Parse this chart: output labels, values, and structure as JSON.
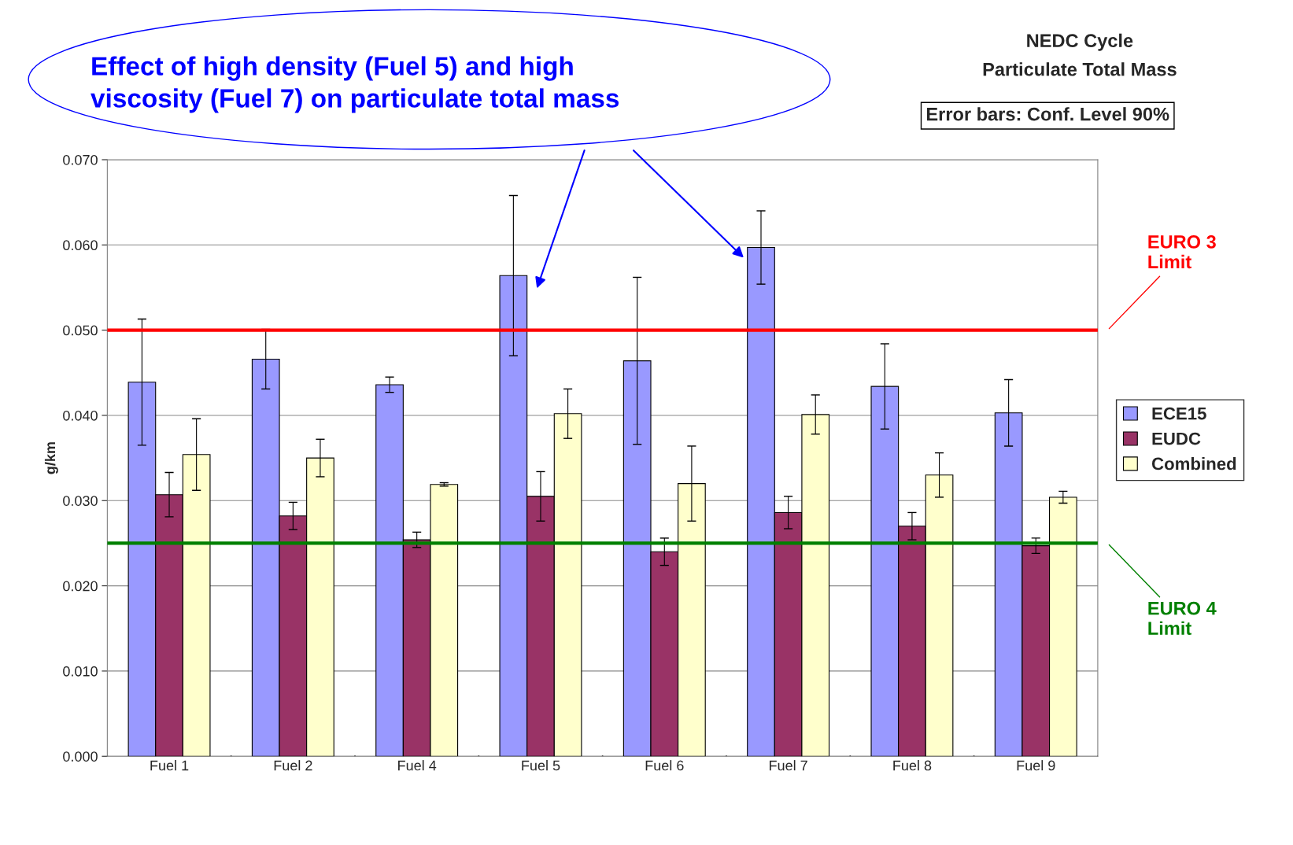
{
  "chart_data": {
    "type": "bar",
    "title": "NEDC Cycle",
    "subtitle": "Particulate Total Mass",
    "ylabel": "g/km",
    "categories": [
      "Fuel 1",
      "Fuel 2",
      "Fuel 4",
      "Fuel 5",
      "Fuel 6",
      "Fuel 7",
      "Fuel 8",
      "Fuel 9"
    ],
    "series": [
      {
        "name": "ECE15",
        "color": "#9999ff",
        "values": [
          0.0439,
          0.0466,
          0.0436,
          0.0564,
          0.0464,
          0.0597,
          0.0434,
          0.0403
        ],
        "errors": [
          0.0074,
          0.0035,
          0.0009,
          0.0094,
          0.0098,
          0.0043,
          0.005,
          0.0039
        ]
      },
      {
        "name": "EUDC",
        "color": "#993366",
        "values": [
          0.0307,
          0.0282,
          0.0254,
          0.0305,
          0.024,
          0.0286,
          0.027,
          0.0247
        ],
        "errors": [
          0.0026,
          0.0016,
          0.0009,
          0.0029,
          0.0016,
          0.0019,
          0.0016,
          0.0009
        ]
      },
      {
        "name": "Combined",
        "color": "#ffffcc",
        "values": [
          0.0354,
          0.035,
          0.0319,
          0.0402,
          0.032,
          0.0401,
          0.033,
          0.0304
        ],
        "errors": [
          0.0042,
          0.0022,
          0.0002,
          0.0029,
          0.0044,
          0.0023,
          0.0026,
          0.0007
        ]
      }
    ],
    "ylim": [
      0,
      0.07
    ],
    "yticks": [
      {
        "value": 0,
        "label": "0.000"
      },
      {
        "value": 0.01,
        "label": "0.010"
      },
      {
        "value": 0.02,
        "label": "0.020"
      },
      {
        "value": 0.03,
        "label": "0.030"
      },
      {
        "value": 0.04,
        "label": "0.040"
      },
      {
        "value": 0.05,
        "label": "0.050"
      },
      {
        "value": 0.06,
        "label": "0.060"
      },
      {
        "value": 0.07,
        "label": "0.070"
      }
    ],
    "ref_lines": [
      {
        "axis": "y",
        "value": 0.05,
        "label": "EURO 3\nLimit",
        "color": "#ff0000"
      },
      {
        "axis": "y",
        "value": 0.025,
        "label": "EURO 4\nLimit",
        "color": "#008000"
      }
    ],
    "annotations": [
      "Effect of high density (Fuel 5) and high\nviscosity (Fuel 7) on particulate total mass",
      "Error bars: Conf. Level 90%"
    ],
    "grid": "y",
    "legend": "right"
  }
}
